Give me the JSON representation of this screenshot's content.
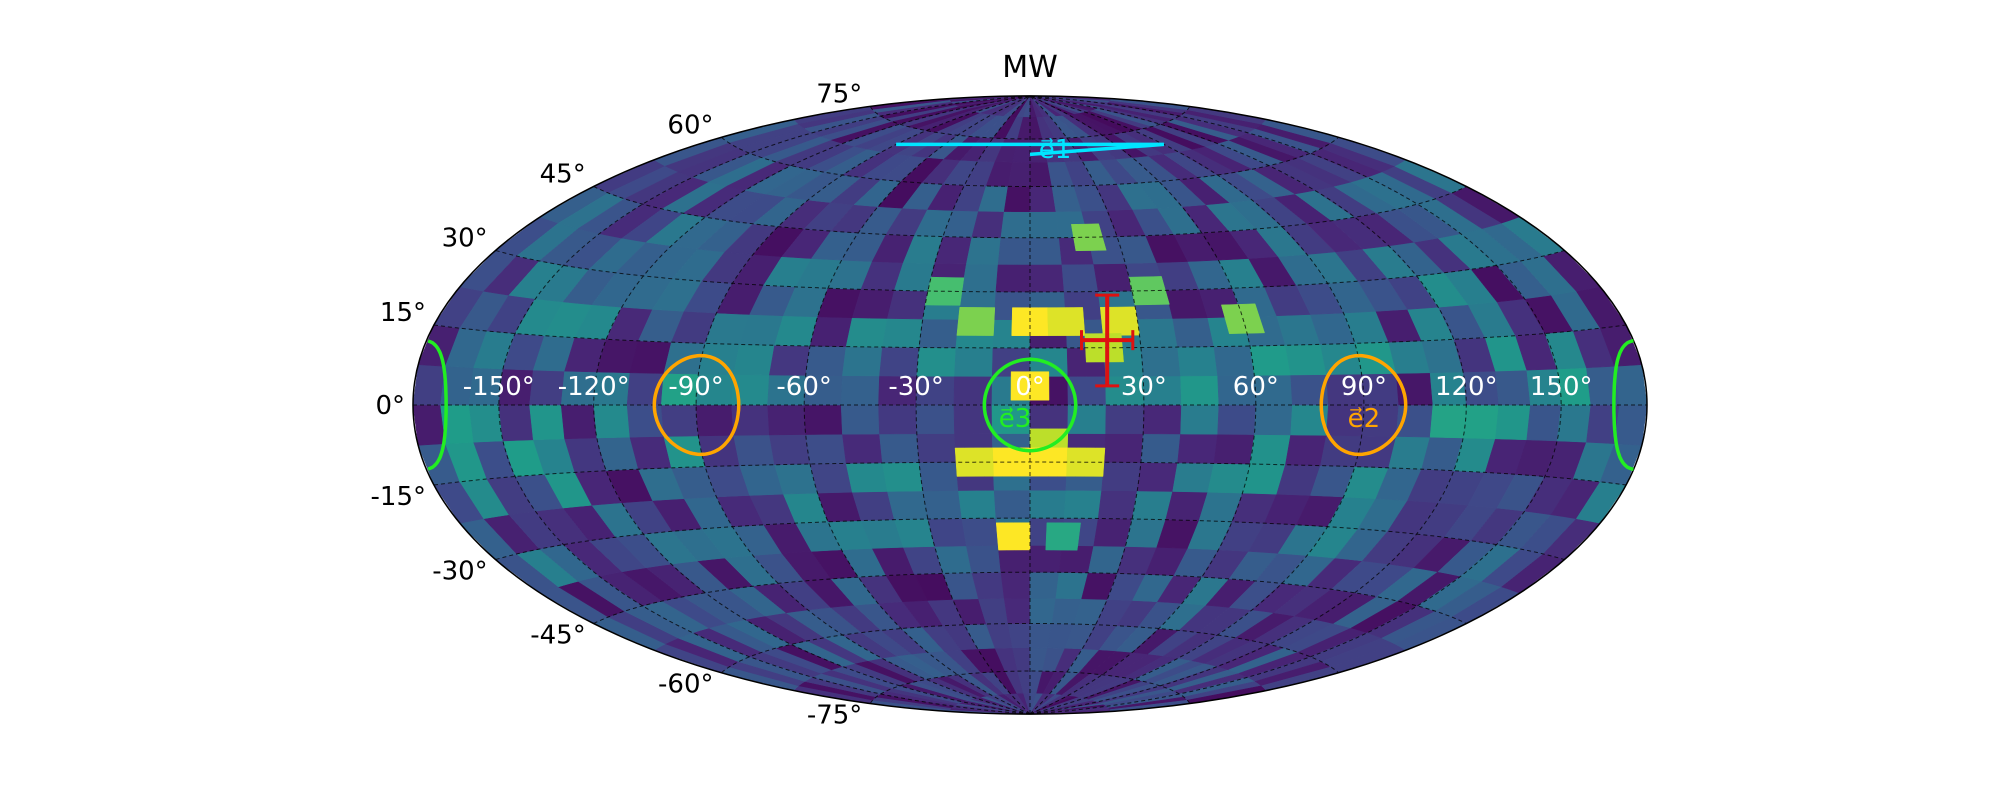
{
  "chart_data": {
    "type": "heatmap",
    "projection": "hammer",
    "title": "MW",
    "colormap": "viridis",
    "grid": true,
    "lon_ticks": [
      "-150°",
      "-120°",
      "-90°",
      "-60°",
      "-30°",
      "0°",
      "30°",
      "60°",
      "90°",
      "120°",
      "150°"
    ],
    "lon_tick_values": [
      -150,
      -120,
      -90,
      -60,
      -30,
      0,
      30,
      60,
      90,
      120,
      150
    ],
    "lat_ticks": [
      "75°",
      "60°",
      "45°",
      "30°",
      "15°",
      "0°",
      "-15°",
      "-30°",
      "-45°",
      "-60°",
      "-75°"
    ],
    "lat_tick_values": [
      75,
      60,
      45,
      30,
      15,
      0,
      -15,
      -30,
      -45,
      -60,
      -75
    ],
    "lon_range": [
      -180,
      180
    ],
    "lat_range": [
      -90,
      90
    ],
    "bright_cells": [
      {
        "lon": 0,
        "lat": 22,
        "value": 1.0
      },
      {
        "lon": 10,
        "lat": 22,
        "value": 0.95
      },
      {
        "lon": 25,
        "lat": 22,
        "value": 0.95
      },
      {
        "lon": 20,
        "lat": 15,
        "value": 0.9
      },
      {
        "lon": -15,
        "lat": 22,
        "value": 0.8
      },
      {
        "lon": 60,
        "lat": 22,
        "value": 0.8
      },
      {
        "lon": 20,
        "lat": 45,
        "value": 0.8
      },
      {
        "lon": 35,
        "lat": 30,
        "value": 0.75
      },
      {
        "lon": -25,
        "lat": 30,
        "value": 0.7
      },
      {
        "lon": 0,
        "lat": 5,
        "value": 1.0
      },
      {
        "lon": 5,
        "lat": -10,
        "value": 0.9
      },
      {
        "lon": -5,
        "lat": -15,
        "value": 1.0
      },
      {
        "lon": 5,
        "lat": -15,
        "value": 1.0
      },
      {
        "lon": -15,
        "lat": -15,
        "value": 0.95
      },
      {
        "lon": 15,
        "lat": -15,
        "value": 0.95
      },
      {
        "lon": -5,
        "lat": -35,
        "value": 1.0
      },
      {
        "lon": 10,
        "lat": -35,
        "value": 0.6
      }
    ],
    "annotations": [
      {
        "kind": "circle",
        "label": "e⃗1",
        "lon": 0,
        "lat": 90,
        "radius_deg": 20,
        "color": "#00e5ff"
      },
      {
        "kind": "circle",
        "label": "e⃗2",
        "lon": 90,
        "lat": 0,
        "radius_deg": 12,
        "color": "#ffa500"
      },
      {
        "kind": "circle",
        "label": "",
        "lon": -90,
        "lat": 0,
        "radius_deg": 12,
        "color": "#ffa500"
      },
      {
        "kind": "circle",
        "label": "e⃗3",
        "lon": 0,
        "lat": 0,
        "radius_deg": 12,
        "color": "#22ee22"
      },
      {
        "kind": "circle",
        "label": "",
        "lon": 180,
        "lat": 0,
        "radius_deg": 12,
        "color": "#22ee22"
      },
      {
        "kind": "errorbar",
        "label": "",
        "lon": 21,
        "lat": 17,
        "xerr": 7,
        "yerr": 12,
        "color": "#dd1111"
      }
    ]
  }
}
